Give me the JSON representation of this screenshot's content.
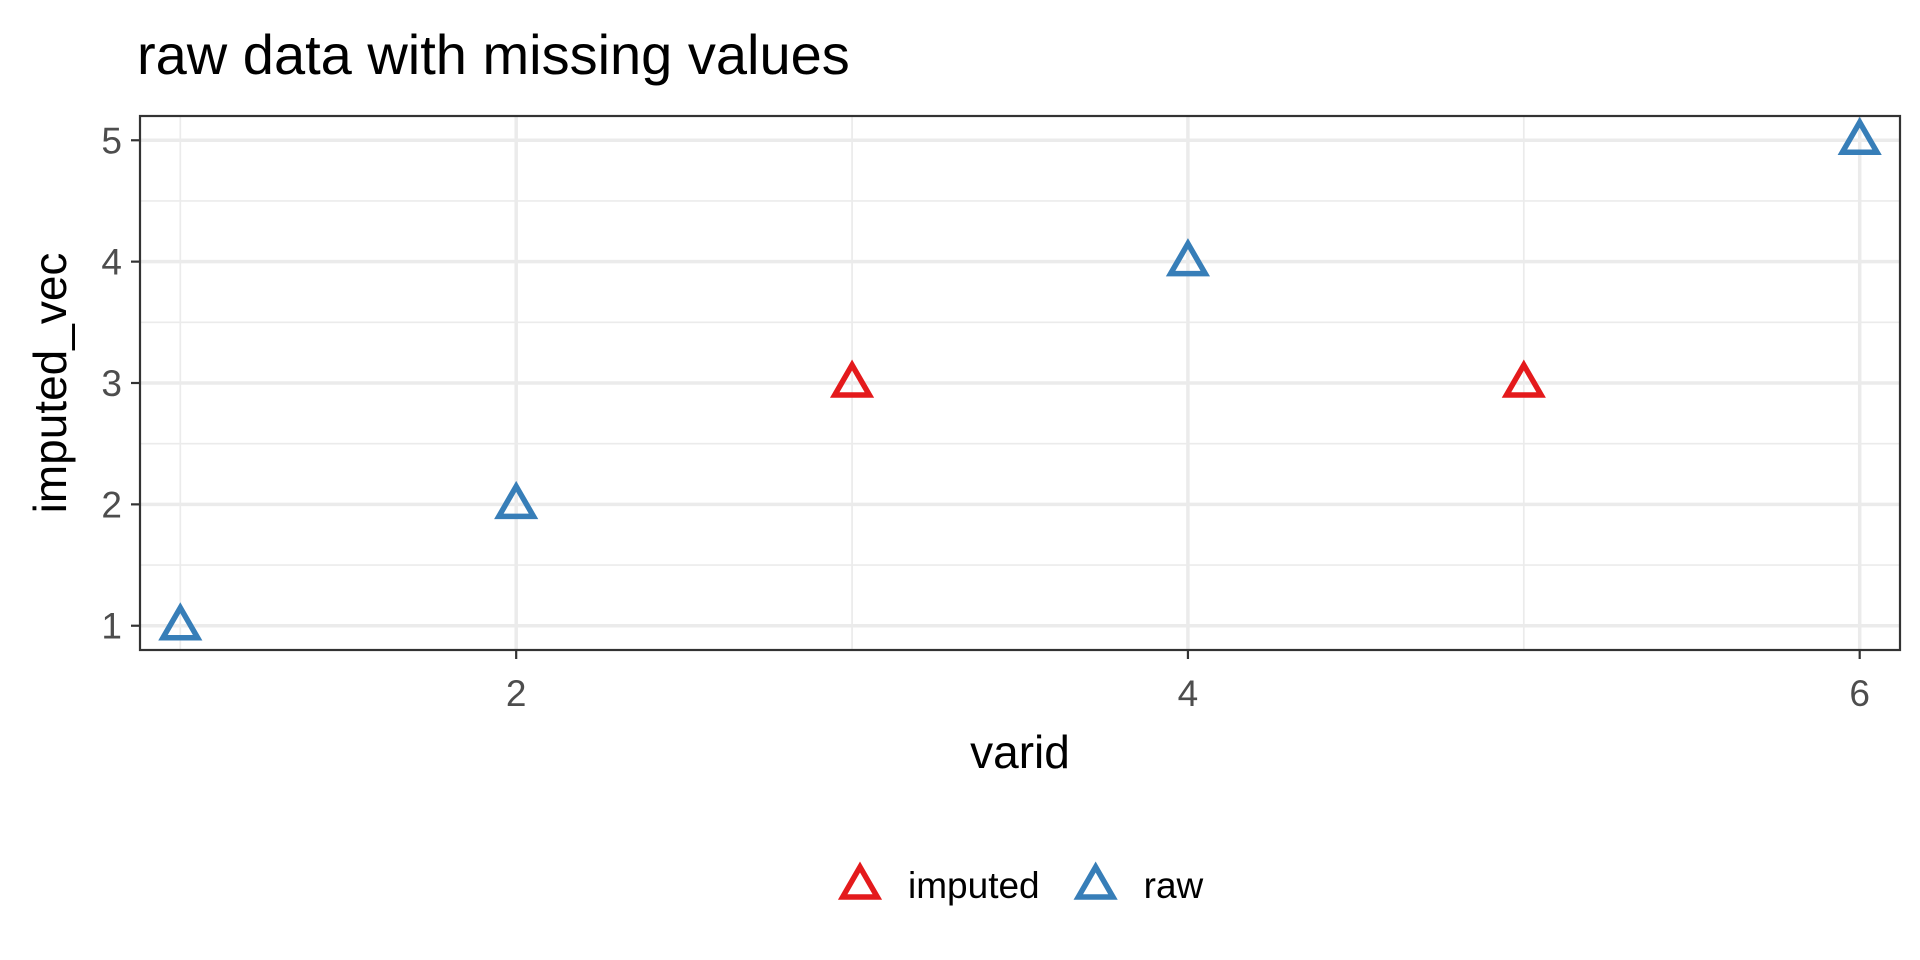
{
  "chart_data": {
    "type": "scatter",
    "title": "raw data with missing values",
    "xlabel": "varid",
    "ylabel": "imputed_vec",
    "xlim": [
      0.88,
      6.12
    ],
    "ylim": [
      0.8,
      5.2
    ],
    "x_ticks": [
      2,
      4,
      6
    ],
    "y_ticks": [
      1,
      2,
      3,
      4,
      5
    ],
    "x_tick_labels": [
      "2",
      "4",
      "6"
    ],
    "y_tick_labels": [
      "1",
      "2",
      "3",
      "4",
      "5"
    ],
    "grid": true,
    "marker": "triangle-open",
    "legend": {
      "position": "bottom",
      "entries": [
        {
          "label": "imputed",
          "color": "#e41a1c"
        },
        {
          "label": "raw",
          "color": "#377eb8"
        }
      ]
    },
    "series": [
      {
        "name": "imputed",
        "color": "#e41a1c",
        "points": [
          {
            "x": 3,
            "y": 3
          },
          {
            "x": 5,
            "y": 3
          }
        ]
      },
      {
        "name": "raw",
        "color": "#377eb8",
        "points": [
          {
            "x": 1,
            "y": 1
          },
          {
            "x": 2,
            "y": 2
          },
          {
            "x": 4,
            "y": 4
          },
          {
            "x": 6,
            "y": 5
          }
        ]
      }
    ]
  }
}
